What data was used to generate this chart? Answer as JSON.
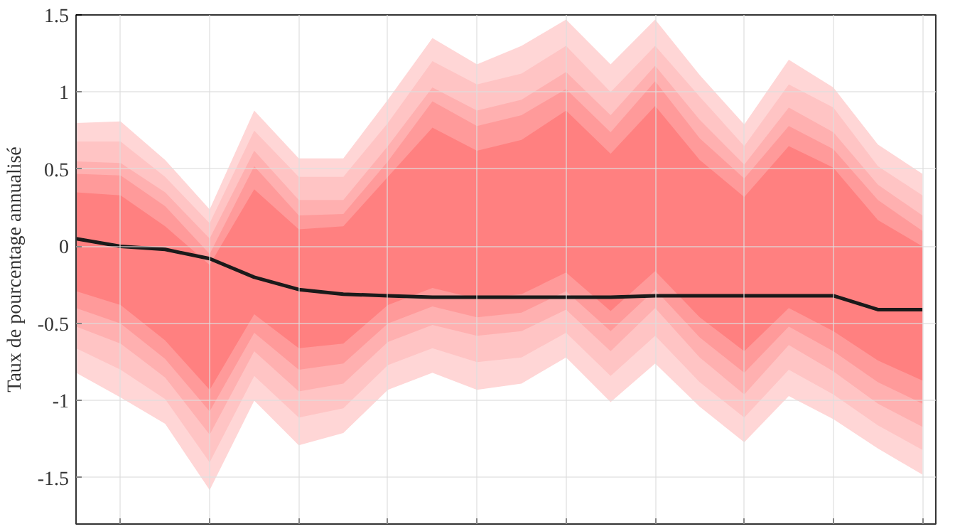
{
  "chart_data": {
    "type": "line",
    "ylabel": "Taux de pourcentage annualisé",
    "categories": [
      null,
      null,
      null,
      null,
      null,
      null,
      null,
      null,
      null,
      null,
      null,
      null,
      null,
      null,
      null,
      null,
      null,
      null,
      null,
      null
    ],
    "ylim": [
      -1.8,
      1.5
    ],
    "yticks": [
      -1.5,
      -1,
      -0.5,
      0,
      0.5,
      1,
      1.5
    ],
    "grid": true,
    "series": [
      {
        "type": "area",
        "color": "#ffd6d6",
        "values": [
          null,
          null,
          null,
          null,
          null,
          null,
          null,
          null,
          null,
          null,
          null,
          null,
          null,
          null,
          null,
          null,
          null,
          null,
          null,
          null
        ],
        "upper": [
          0.8,
          0.81,
          0.56,
          0.24,
          0.88,
          0.57,
          0.57,
          0.95,
          1.35,
          1.18,
          1.3,
          1.47,
          1.18,
          1.47,
          1.11,
          0.79,
          1.21,
          1.03,
          0.66,
          0.47
        ],
        "lower": [
          -0.82,
          -0.98,
          -1.15,
          -1.58,
          -1.0,
          -1.29,
          -1.21,
          -0.93,
          -0.82,
          -0.93,
          -0.89,
          -0.72,
          -1.01,
          -0.76,
          -1.04,
          -1.27,
          -0.97,
          -1.12,
          -1.31,
          -1.48
        ]
      },
      {
        "type": "area",
        "color": "#ffc4c4",
        "values": [
          null,
          null,
          null,
          null,
          null,
          null,
          null,
          null,
          null,
          null,
          null,
          null,
          null,
          null,
          null,
          null,
          null,
          null,
          null,
          null
        ],
        "upper": [
          0.68,
          0.68,
          0.45,
          0.15,
          0.75,
          0.45,
          0.45,
          0.8,
          1.2,
          1.05,
          1.12,
          1.3,
          1.0,
          1.3,
          0.97,
          0.65,
          1.05,
          0.9,
          0.52,
          0.33
        ],
        "lower": [
          -0.66,
          -0.8,
          -0.99,
          -1.4,
          -0.84,
          -1.11,
          -1.05,
          -0.77,
          -0.66,
          -0.75,
          -0.72,
          -0.56,
          -0.84,
          -0.58,
          -0.88,
          -1.11,
          -0.8,
          -0.96,
          -1.16,
          -1.32
        ]
      },
      {
        "type": "area",
        "color": "#ffb0b0",
        "values": [
          null,
          null,
          null,
          null,
          null,
          null,
          null,
          null,
          null,
          null,
          null,
          null,
          null,
          null,
          null,
          null,
          null,
          null,
          null,
          null
        ],
        "upper": [
          0.55,
          0.54,
          0.35,
          0.05,
          0.62,
          0.3,
          0.3,
          0.65,
          1.03,
          0.88,
          0.95,
          1.13,
          0.85,
          1.17,
          0.82,
          0.53,
          0.9,
          0.74,
          0.4,
          0.2
        ],
        "lower": [
          -0.52,
          -0.63,
          -0.85,
          -1.22,
          -0.68,
          -0.94,
          -0.89,
          -0.62,
          -0.51,
          -0.58,
          -0.55,
          -0.41,
          -0.68,
          -0.4,
          -0.72,
          -0.96,
          -0.64,
          -0.81,
          -1.02,
          -1.17
        ]
      },
      {
        "type": "area",
        "color": "#ff9a9a",
        "values": [
          null,
          null,
          null,
          null,
          null,
          null,
          null,
          null,
          null,
          null,
          null,
          null,
          null,
          null,
          null,
          null,
          null,
          null,
          null,
          null
        ],
        "upper": [
          0.47,
          0.46,
          0.26,
          -0.05,
          0.52,
          0.2,
          0.21,
          0.55,
          0.94,
          0.78,
          0.85,
          1.02,
          0.74,
          1.07,
          0.7,
          0.44,
          0.78,
          0.63,
          0.3,
          0.1
        ],
        "lower": [
          -0.4,
          -0.5,
          -0.73,
          -1.07,
          -0.56,
          -0.8,
          -0.76,
          -0.5,
          -0.39,
          -0.46,
          -0.43,
          -0.29,
          -0.55,
          -0.28,
          -0.59,
          -0.82,
          -0.52,
          -0.68,
          -0.88,
          -1.02
        ]
      },
      {
        "type": "area",
        "color": "#ff8080",
        "values": [
          null,
          null,
          null,
          null,
          null,
          null,
          null,
          null,
          null,
          null,
          null,
          null,
          null,
          null,
          null,
          null,
          null,
          null,
          null,
          null
        ],
        "upper": [
          0.35,
          0.33,
          0.13,
          -0.12,
          0.37,
          0.11,
          0.13,
          0.45,
          0.77,
          0.62,
          0.69,
          0.88,
          0.6,
          0.91,
          0.56,
          0.32,
          0.65,
          0.51,
          0.17,
          0.0
        ],
        "lower": [
          -0.29,
          -0.38,
          -0.61,
          -0.93,
          -0.44,
          -0.66,
          -0.63,
          -0.38,
          -0.27,
          -0.34,
          -0.31,
          -0.17,
          -0.42,
          -0.16,
          -0.46,
          -0.68,
          -0.4,
          -0.55,
          -0.74,
          -0.87
        ]
      },
      {
        "color": "#1a1a1a",
        "values": [
          0.05,
          0.0,
          -0.02,
          -0.08,
          -0.2,
          -0.28,
          -0.31,
          -0.32,
          -0.33,
          -0.33,
          -0.33,
          -0.33,
          -0.33,
          -0.32,
          -0.32,
          -0.32,
          -0.32,
          -0.32,
          -0.41,
          -0.41
        ]
      }
    ]
  }
}
